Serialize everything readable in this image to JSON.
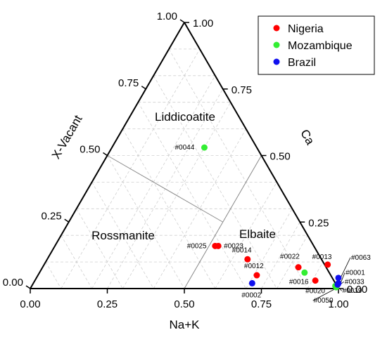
{
  "chart_data": {
    "type": "scatter",
    "subtype": "ternary",
    "axes": {
      "bottom": {
        "label": "Na+K",
        "ticks": [
          "0.00",
          "0.25",
          "0.50",
          "0.75",
          "1.00"
        ],
        "range": [
          0,
          1
        ]
      },
      "right": {
        "label": "Ca",
        "ticks": [
          "0.00",
          "0.25",
          "0.50",
          "0.75",
          "1.00"
        ],
        "range": [
          0,
          1
        ]
      },
      "left": {
        "label": "X-Vacant",
        "ticks": [
          "1.00",
          "0.75",
          "0.50",
          "0.25",
          "0.00"
        ],
        "range": [
          0,
          1
        ]
      }
    },
    "grid": true,
    "fields": [
      {
        "name": "Liddicoatite"
      },
      {
        "name": "Rossmanite"
      },
      {
        "name": "Elbaite"
      }
    ],
    "legend": {
      "position": "top-right",
      "entries": [
        "Nigeria",
        "Mozambique",
        "Brazil"
      ]
    },
    "colors": {
      "Nigeria": "#ff0000",
      "Mozambique": "#33ee33",
      "Brazil": "#1010ee"
    },
    "series": [
      {
        "name": "Nigeria",
        "points": [
          {
            "id": "#0025",
            "na_k": 0.52,
            "ca": 0.16,
            "x_vacant": 0.32
          },
          {
            "id": "#0023",
            "na_k": 0.53,
            "ca": 0.16,
            "x_vacant": 0.31
          },
          {
            "id": "#0014",
            "na_k": 0.65,
            "ca": 0.11,
            "x_vacant": 0.24
          },
          {
            "id": "#0012",
            "na_k": 0.71,
            "ca": 0.05,
            "x_vacant": 0.24
          },
          {
            "id": "#0022",
            "na_k": 0.83,
            "ca": 0.08,
            "x_vacant": 0.09
          },
          {
            "id": "#0013",
            "na_k": 0.92,
            "ca": 0.09,
            "x_vacant": -0.01
          },
          {
            "id": "#0020",
            "na_k": 0.91,
            "ca": 0.03,
            "x_vacant": 0.06
          }
        ]
      },
      {
        "name": "Mozambique",
        "points": [
          {
            "id": "#0044",
            "na_k": 0.3,
            "ca": 0.53,
            "x_vacant": 0.17
          },
          {
            "id": "#0016",
            "na_k": 0.86,
            "ca": 0.06,
            "x_vacant": 0.08
          },
          {
            "id": "#0019",
            "na_k": 0.985,
            "ca": 0.01,
            "x_vacant": 0.005
          },
          {
            "id": "#0050",
            "na_k": 0.99,
            "ca": 0.005,
            "x_vacant": 0.005
          }
        ]
      },
      {
        "name": "Brazil",
        "points": [
          {
            "id": "#0002",
            "na_k": 0.71,
            "ca": 0.02,
            "x_vacant": 0.27
          },
          {
            "id": "#0063",
            "na_k": 0.98,
            "ca": 0.04,
            "x_vacant": -0.02
          },
          {
            "id": "#0001",
            "na_k": 0.99,
            "ca": 0.02,
            "x_vacant": -0.01
          },
          {
            "id": "#0033",
            "na_k": 0.99,
            "ca": 0.015,
            "x_vacant": -0.005
          }
        ]
      }
    ]
  }
}
